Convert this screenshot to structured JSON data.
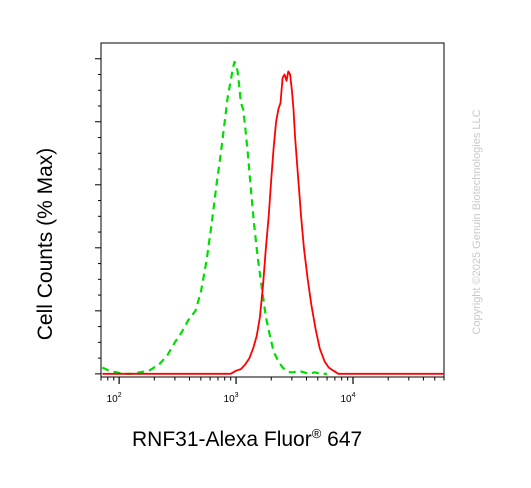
{
  "chart_data": {
    "type": "line",
    "xlabel_main": "RNF31-Alexa Fluor",
    "xlabel_sup": "®",
    "xlabel_tail": " 647",
    "ylabel": "Cell Counts (% Max)",
    "x_scale": "log",
    "xlim": [
      70,
      60000
    ],
    "ylim": [
      -1,
      105
    ],
    "x_ticks": [
      {
        "value": 100,
        "base": "10",
        "exp": "2"
      },
      {
        "value": 1000,
        "base": "10",
        "exp": "3"
      },
      {
        "value": 10000,
        "base": "10",
        "exp": "4"
      }
    ],
    "y_ticks": [
      0,
      20,
      40,
      60,
      80,
      100
    ],
    "grid": false,
    "series": [
      {
        "color": "#00dd00",
        "style": "dashed",
        "x": [
          72,
          82,
          95,
          110,
          130,
          150,
          180,
          220,
          260,
          300,
          340,
          390,
          450,
          500,
          560,
          620,
          680,
          740,
          800,
          850,
          900,
          940,
          970,
          1000,
          1030,
          1060,
          1100,
          1150,
          1200,
          1260,
          1330,
          1420,
          1530,
          1650,
          1800,
          1950,
          2100,
          2300,
          2500,
          2700,
          2900,
          3100,
          3400,
          3800,
          4200,
          4700,
          5200,
          6000
        ],
        "y": [
          2,
          1,
          0.5,
          0,
          0,
          0.5,
          1,
          3,
          6,
          10,
          13,
          17,
          20,
          26,
          36,
          48,
          60,
          70,
          80,
          88,
          93,
          97,
          99,
          98,
          96,
          92,
          86,
          84,
          78,
          70,
          60,
          48,
          37,
          28,
          18,
          12,
          7,
          4,
          2,
          1,
          0.5,
          0.5,
          1,
          0.5,
          0,
          0.5,
          0,
          0
        ]
      },
      {
        "color": "#ff0000",
        "style": "solid",
        "x": [
          72,
          150,
          300,
          500,
          700,
          900,
          1000,
          1100,
          1200,
          1300,
          1400,
          1500,
          1600,
          1700,
          1800,
          1900,
          2000,
          2100,
          2200,
          2300,
          2400,
          2500,
          2600,
          2700,
          2800,
          2900,
          3000,
          3100,
          3200,
          3400,
          3600,
          3800,
          4100,
          4400,
          4800,
          5200,
          5700,
          6200,
          6800,
          7500,
          8000,
          9000,
          15000,
          30000,
          60000
        ],
        "y": [
          0,
          0,
          0,
          0,
          0,
          0,
          1,
          1.5,
          3,
          5,
          8,
          12,
          18,
          28,
          40,
          50,
          62,
          72,
          80,
          84,
          86,
          94,
          95,
          93,
          96,
          95,
          90,
          84,
          75,
          62,
          50,
          40,
          30,
          22,
          14,
          8,
          4,
          2,
          1,
          0,
          0,
          0,
          0,
          0,
          0
        ]
      }
    ]
  },
  "watermark": "Copyright ©2025 Genuin Biotechnologies LLC"
}
